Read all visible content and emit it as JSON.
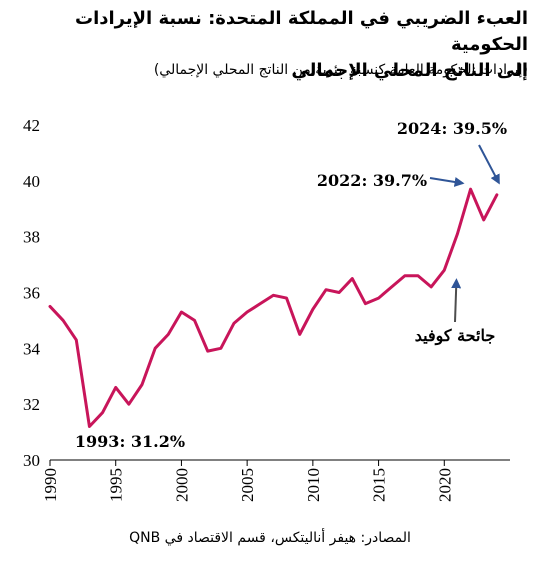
{
  "chart_data": {
    "type": "line",
    "title_line1": "العبء الضريبي في المملكة المتحدة: نسبة الإيرادات الحكومية",
    "title_line2": "إلى الناتج المحلي الإجمالي",
    "subtitle": "(إيرادات الحكومة العامة كنسبة مئوية من الناتج المحلي الإجمالي)",
    "source": "المصادر: هيفر أناليتكس، قسم الاقتصاد في QNB",
    "x": [
      1990,
      1991,
      1992,
      1993,
      1994,
      1995,
      1996,
      1997,
      1998,
      1999,
      2000,
      2001,
      2002,
      2003,
      2004,
      2005,
      2006,
      2007,
      2008,
      2009,
      2010,
      2011,
      2012,
      2013,
      2014,
      2015,
      2016,
      2017,
      2018,
      2019,
      2020,
      2021,
      2022,
      2023,
      2024
    ],
    "series": [
      {
        "values": [
          35.5,
          35.0,
          34.3,
          31.2,
          31.7,
          32.6,
          32.0,
          32.7,
          34.0,
          34.5,
          35.3,
          35.0,
          33.9,
          34.0,
          34.9,
          35.3,
          35.6,
          35.9,
          35.8,
          34.5,
          35.4,
          36.1,
          36.0,
          36.5,
          35.6,
          35.8,
          36.2,
          36.6,
          36.6,
          36.2,
          36.8,
          38.1,
          39.7,
          38.6,
          39.5
        ],
        "color": "#c8155a"
      }
    ],
    "xlim": [
      1990,
      2025
    ],
    "ylim": [
      30,
      42
    ],
    "xticks": [
      1990,
      1995,
      2000,
      2005,
      2010,
      2015,
      2020
    ],
    "yticks": [
      30,
      32,
      34,
      36,
      38,
      40,
      42
    ],
    "grid": false,
    "annotations": [
      {
        "text": "1993: 31.2%",
        "x": 1993,
        "y": 31.2
      },
      {
        "text": "2022: 39.7%",
        "x": 2022,
        "y": 39.7
      },
      {
        "text": "2024: 39.5%",
        "x": 2024,
        "y": 39.5
      },
      {
        "text": "جائحة كوفيد",
        "x": 2020,
        "y": 36.2
      }
    ]
  }
}
